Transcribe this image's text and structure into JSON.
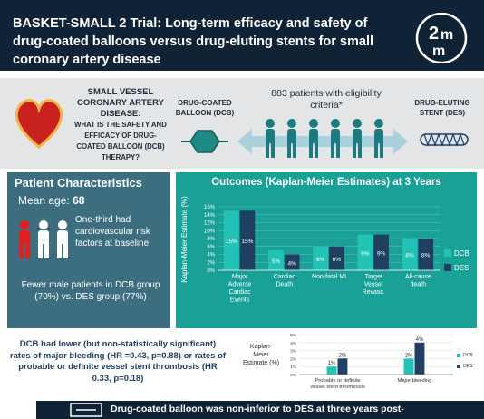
{
  "header": {
    "title": "BASKET-SMALL 2 Trial: Long-term efficacy and safety of drug-coated balloons versus drug-eluting stents for small coronary artery disease",
    "logo_text": "2mm"
  },
  "intro": {
    "question_line1": "SMALL VESSEL CORONARY ARTERY DISEASE:",
    "question_line2": "WHAT IS THE SAFETY AND EFFICACY OF DRUG-COATED BALLOON (DCB) THERAPY?",
    "dcb_label": "DRUG-COATED BALLOON (DCB)",
    "des_label": "DRUG-ELUTING STENT (DES)",
    "patients_label": "883 patients with eligibility criteria*"
  },
  "patient_characteristics": {
    "title": "Patient Characteristics",
    "age_label": "Mean age:",
    "age_value": "68",
    "risk_text": "One-third had cardiovascular risk factors at baseline",
    "male_text": "Fewer male patients in DCB group (70%) vs. DES group (77%)"
  },
  "outcomes": {
    "title": "Outcomes (Kaplan-Meier Estimates) at 3 Years"
  },
  "secondary": {
    "text": "DCB had lower (but non-statistically significant) rates of major bleeding (HR =0.43, p=0.88) or rates of probable or definite vessel stent thrombosis (HR 0.33, p=0.18)"
  },
  "footer": {
    "text": "Drug-coated balloon was non-inferior to DES at three years post-"
  },
  "colors": {
    "dcb": "#22c3b6",
    "des": "#1f3f63",
    "panel_teal": "#19a198",
    "panel_blue": "#3d6e80",
    "header": "#0f2236"
  },
  "chart_data": [
    {
      "type": "bar",
      "title": "Outcomes (Kaplan-Meier Estimates) at 3 Years",
      "ylabel": "Kaplan-Meier Estimate (%)",
      "ylim": [
        0,
        16
      ],
      "yticks": [
        "0%",
        "2%",
        "4%",
        "6%",
        "8%",
        "10%",
        "12%",
        "14%",
        "16%"
      ],
      "categories": [
        "Major Adverse Cardiac Events",
        "Cardiac Death",
        "Non-fatal MI",
        "Target Vessel Revasc.",
        "All-cause death"
      ],
      "category_lines": [
        [
          "Major",
          "Adverse",
          "Cardiac",
          "Events"
        ],
        [
          "Cardiac",
          "Death"
        ],
        [
          "Non-fatal MI"
        ],
        [
          "Target",
          "Vessel",
          "Revasc."
        ],
        [
          "All-cause",
          "death"
        ]
      ],
      "series": [
        {
          "name": "DCB",
          "values": [
            15,
            5,
            6,
            9,
            8
          ],
          "labels": [
            "15%",
            "5%",
            "6%",
            "9%",
            "8%"
          ]
        },
        {
          "name": "DES",
          "values": [
            15,
            4,
            6,
            9,
            8
          ],
          "labels": [
            "15%",
            "4%",
            "6%",
            "9%",
            "8%"
          ]
        }
      ],
      "legend": "right",
      "grid": true
    },
    {
      "type": "bar",
      "ylabel": "Kaplan-Meier Estimate (%)",
      "ylim": [
        0,
        5
      ],
      "yticks": [
        "0%",
        "1%",
        "2%",
        "3%",
        "4%",
        "5%"
      ],
      "categories": [
        "Probable or definite vessel stent thrombosis",
        "Major bleeding"
      ],
      "category_lines": [
        [
          "Probable or definite",
          "vessel stent thrombosis"
        ],
        [
          "Major bleeding"
        ]
      ],
      "series": [
        {
          "name": "DCB",
          "values": [
            1,
            2
          ],
          "labels": [
            "1%",
            "2%"
          ]
        },
        {
          "name": "DES",
          "values": [
            2,
            4
          ],
          "labels": [
            "2%",
            "4%"
          ]
        }
      ],
      "legend": "right",
      "grid": true
    }
  ]
}
